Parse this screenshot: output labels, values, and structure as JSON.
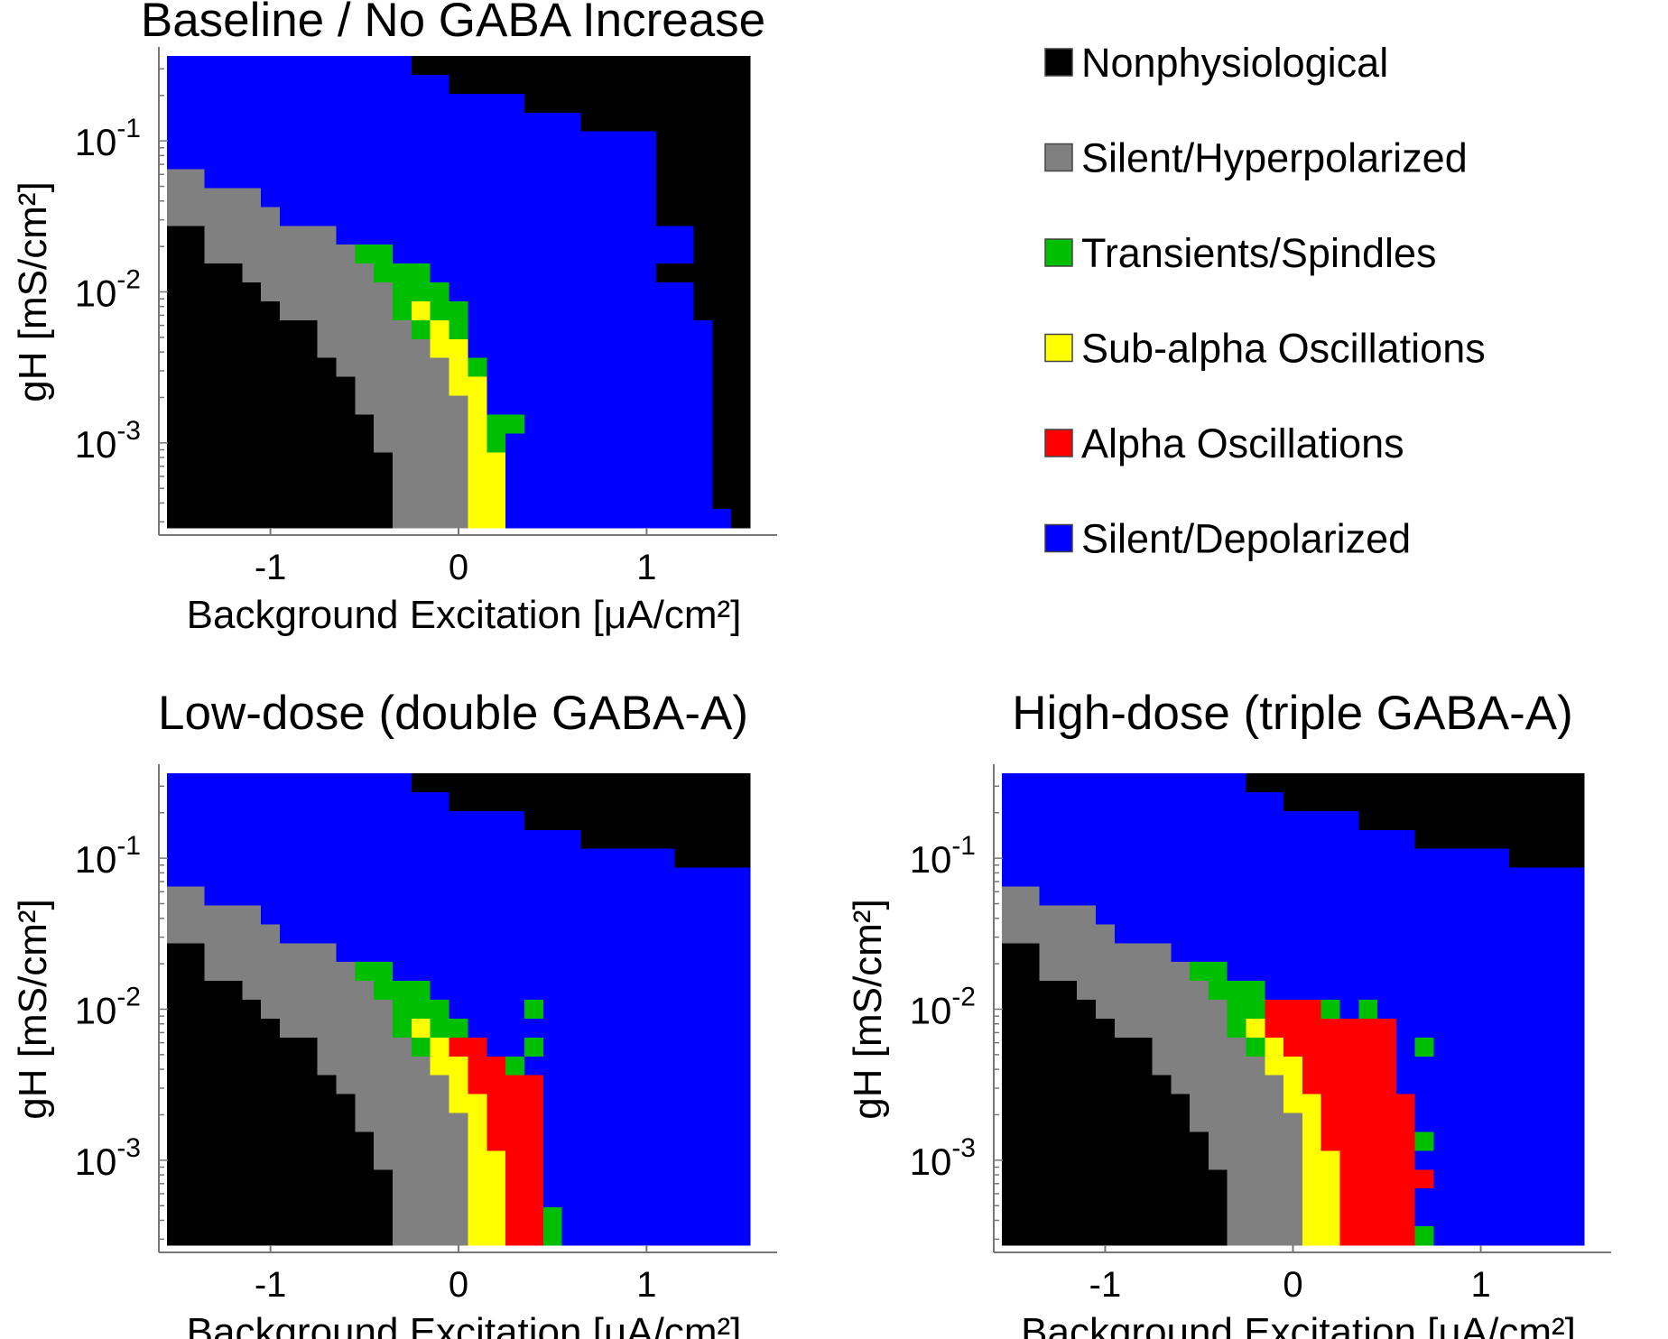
{
  "chart_data": {
    "type": "heatmap",
    "categories": {
      "K": {
        "name": "Nonphysiological",
        "color": "#000000"
      },
      "S": {
        "name": "Silent/Hyperpolarized",
        "color": "#808080"
      },
      "T": {
        "name": "Transients/Spindles",
        "color": "#00bf00"
      },
      "U": {
        "name": "Sub-alpha Oscillations",
        "color": "#ffff00"
      },
      "A": {
        "name": "Alpha Oscillations",
        "color": "#ff0000"
      },
      "D": {
        "name": "Silent/Depolarized",
        "color": "#0000ff"
      }
    },
    "legend_order": [
      "K",
      "S",
      "T",
      "U",
      "A",
      "D"
    ],
    "legend_placement": "top-right",
    "x_values": {
      "start": -1.5,
      "step": 0.1,
      "count": 31
    },
    "y_values_log10": {
      "start": -0.5,
      "step": -0.125,
      "count": 25
    },
    "y_scale": "log",
    "xlim": [
      -1.55,
      1.55
    ],
    "ylim_log10": [
      -3.5625,
      -0.4375
    ],
    "x_ticks": [
      -1,
      0,
      1
    ],
    "y_ticks": [
      {
        "base": "10",
        "exp": "-1",
        "log10": -1
      },
      {
        "base": "10",
        "exp": "-2",
        "log10": -2
      },
      {
        "base": "10",
        "exp": "-3",
        "log10": -3
      }
    ],
    "xlabel": "Background Excitation [μA/cm²]",
    "ylabel": "gH [mS/cm²]",
    "row_encoding": "run-length, top row first (highest gH), columns left to right",
    "panels": [
      {
        "title": "Baseline / No GABA Increase",
        "rows": [
          "D13 K18",
          "D15 K16",
          "D19 K12",
          "D22 K9",
          "D26 K5",
          "D26 K5",
          "S2 D24 K5",
          "S5 D21 K5",
          "S6 D20 K5",
          "K2 S7 D19 K3",
          "K2 S8 T2 D16 K3",
          "K4 S7 T3 D12 K5",
          "K5 S7 T3 D13 K3",
          "K6 S6 T1 U1 T2 D12 K3",
          "K8 S5 T1 U1 T1 D13 K2",
          "K8 S6 U2 D13 K2",
          "K9 S6 U1 T1 D12 K2",
          "K10 S5 U2 D12 K2",
          "K10 S6 U1 D12 K2",
          "K11 S5 U1 T2 D10 K2",
          "K11 S5 U1 T1 D11 K2",
          "K12 S4 U2 D11 K2",
          "K12 S4 U2 D11 K2",
          "K12 S4 U2 D11 K2",
          "K12 S4 U2 D12 K1"
        ]
      },
      {
        "title": "Low-dose (double GABA-A)",
        "rows": [
          "D13 K18",
          "D15 K16",
          "D19 K12",
          "D22 K9",
          "D27 K4",
          "D31",
          "S2 D29",
          "S5 D26",
          "S6 D25",
          "K2 S7 D22",
          "K2 S8 T2 D19",
          "K4 S7 T3 D17",
          "K5 S7 T3 D4 T1 D11",
          "K6 S6 T1 U1 T2 D15",
          "K8 S5 T1 U1 A2 D2 T1 D11",
          "K8 S6 U2 A2 T1 D12",
          "K9 S6 U1 A4 D11",
          "K10 S5 U2 A3 D11",
          "K10 S6 U1 A3 D11",
          "K11 S5 U1 A3 D11",
          "K11 S5 U2 A2 D11",
          "K12 S4 U2 A2 D11",
          "K12 S4 U2 A2 D11",
          "K12 S4 U2 A2 T1 D10",
          "K12 S4 U2 A2 T1 D10"
        ]
      },
      {
        "title": "High-dose (triple GABA-A)",
        "rows": [
          "D13 K18",
          "D15 K16",
          "D19 K12",
          "D22 K9",
          "D27 K4",
          "D31",
          "S2 D29",
          "S5 D26",
          "S6 D25",
          "K2 S7 D22",
          "K2 S8 T2 D19",
          "K4 S7 T3 D17",
          "K5 S7 T2 A3 T1 D1 T1 D11",
          "K6 S6 T1 U1 A7 D10",
          "K8 S5 T1 U1 A6 D1 T1 D8",
          "K8 S6 U2 A5 D10",
          "K9 S6 U1 A5 D10",
          "K10 S5 U2 A5 D9",
          "K10 S6 U1 A5 D9",
          "K11 S5 U1 A5 T1 D8",
          "K11 S5 U2 A4 D9",
          "K12 S4 U2 A5 D8",
          "K12 S4 U2 A4 D9",
          "K12 S4 U2 A4 D9",
          "K12 S4 U2 A4 T1 D8"
        ]
      }
    ]
  }
}
